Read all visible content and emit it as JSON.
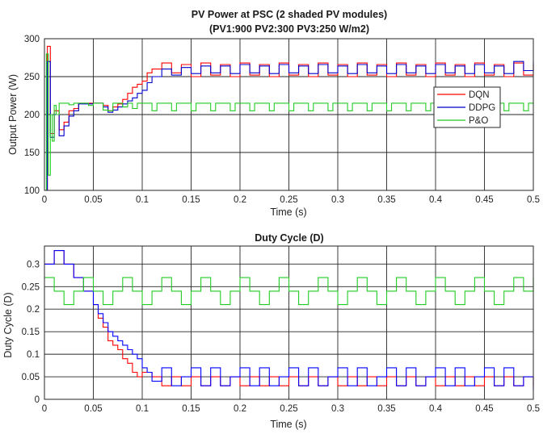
{
  "chart_data": [
    {
      "type": "line",
      "title": "PV Power at PSC (2 shaded PV modules)",
      "subtitle": "(PV1:900 PV2:300 PV3:250 W/m2)",
      "xlabel": "Time (s)",
      "ylabel": "Output Power (W)",
      "xlim": [
        0,
        0.5
      ],
      "ylim": [
        100,
        300
      ],
      "xticks": [
        "0",
        "0.05",
        "0.1",
        "0.15",
        "0.2",
        "0.25",
        "0.3",
        "0.35",
        "0.4",
        "0.45",
        "0.5"
      ],
      "yticks": [
        "100",
        "150",
        "200",
        "250",
        "300"
      ],
      "grid": true,
      "legend_position": "right-middle",
      "series": [
        {
          "name": "DQN",
          "color": "#ff0000",
          "x": [
            0,
            0.003,
            0.006,
            0.01,
            0.015,
            0.02,
            0.025,
            0.03,
            0.035,
            0.05,
            0.06,
            0.065,
            0.07,
            0.075,
            0.08,
            0.085,
            0.09,
            0.095,
            0.1,
            0.105,
            0.11,
            0.12,
            0.13,
            0.14,
            0.15,
            0.16,
            0.17,
            0.18,
            0.19,
            0.2,
            0.21,
            0.22,
            0.23,
            0.24,
            0.25,
            0.26,
            0.27,
            0.28,
            0.29,
            0.3,
            0.31,
            0.32,
            0.33,
            0.34,
            0.35,
            0.36,
            0.37,
            0.38,
            0.39,
            0.4,
            0.41,
            0.42,
            0.43,
            0.44,
            0.45,
            0.46,
            0.47,
            0.48,
            0.49,
            0.5
          ],
          "y": [
            100,
            290,
            175,
            205,
            180,
            190,
            205,
            208,
            215,
            215,
            212,
            205,
            210,
            214,
            220,
            228,
            236,
            240,
            244,
            255,
            260,
            268,
            255,
            266,
            250,
            268,
            252,
            266,
            250,
            268,
            252,
            266,
            250,
            268,
            252,
            266,
            250,
            268,
            252,
            266,
            250,
            268,
            252,
            266,
            250,
            268,
            252,
            266,
            250,
            268,
            252,
            266,
            250,
            268,
            252,
            266,
            250,
            268,
            252,
            266
          ]
        },
        {
          "name": "DDPG",
          "color": "#0000cc",
          "x": [
            0,
            0.003,
            0.006,
            0.01,
            0.015,
            0.02,
            0.025,
            0.03,
            0.035,
            0.05,
            0.06,
            0.065,
            0.07,
            0.075,
            0.08,
            0.085,
            0.09,
            0.095,
            0.1,
            0.105,
            0.11,
            0.12,
            0.13,
            0.14,
            0.15,
            0.16,
            0.17,
            0.18,
            0.19,
            0.2,
            0.21,
            0.22,
            0.23,
            0.24,
            0.25,
            0.26,
            0.27,
            0.28,
            0.29,
            0.3,
            0.31,
            0.32,
            0.33,
            0.34,
            0.35,
            0.36,
            0.37,
            0.38,
            0.39,
            0.4,
            0.41,
            0.42,
            0.43,
            0.44,
            0.45,
            0.46,
            0.47,
            0.48,
            0.49,
            0.5
          ],
          "y": [
            100,
            270,
            170,
            200,
            172,
            185,
            198,
            205,
            214,
            215,
            210,
            203,
            206,
            210,
            214,
            218,
            222,
            228,
            232,
            242,
            250,
            260,
            252,
            262,
            254,
            264,
            255,
            264,
            254,
            266,
            255,
            264,
            254,
            266,
            255,
            264,
            254,
            266,
            255,
            264,
            254,
            266,
            255,
            264,
            254,
            266,
            255,
            264,
            254,
            266,
            255,
            264,
            254,
            266,
            255,
            264,
            254,
            270,
            258,
            270
          ]
        },
        {
          "name": "P&O",
          "color": "#22cc22",
          "x": [
            0,
            0.002,
            0.004,
            0.006,
            0.008,
            0.01,
            0.012,
            0.015,
            0.02,
            0.025,
            0.03,
            0.035,
            0.04,
            0.045,
            0.05,
            0.055,
            0.06,
            0.065,
            0.07,
            0.075,
            0.08,
            0.085,
            0.09,
            0.095,
            0.1,
            0.105,
            0.11,
            0.115,
            0.12,
            0.125,
            0.13,
            0.135,
            0.14,
            0.145,
            0.15,
            0.155,
            0.16,
            0.165,
            0.17,
            0.175,
            0.18,
            0.185,
            0.19,
            0.195,
            0.2,
            0.205,
            0.21,
            0.215,
            0.22,
            0.225,
            0.23,
            0.235,
            0.24,
            0.245,
            0.25,
            0.255,
            0.26,
            0.265,
            0.27,
            0.275,
            0.28,
            0.285,
            0.29,
            0.295,
            0.3,
            0.305,
            0.31,
            0.315,
            0.32,
            0.325,
            0.33,
            0.335,
            0.34,
            0.345,
            0.35,
            0.355,
            0.36,
            0.365,
            0.37,
            0.375,
            0.38,
            0.385,
            0.39,
            0.395,
            0.4,
            0.405,
            0.41,
            0.415,
            0.42,
            0.425,
            0.43,
            0.435,
            0.44,
            0.445,
            0.45,
            0.455,
            0.46,
            0.465,
            0.47,
            0.475,
            0.48,
            0.485,
            0.49,
            0.495,
            0.5
          ],
          "y": [
            100,
            280,
            120,
            200,
            165,
            212,
            200,
            215,
            215,
            213,
            215,
            215,
            215,
            212,
            215,
            215,
            206,
            205,
            215,
            215,
            210,
            215,
            208,
            215,
            215,
            215,
            205,
            215,
            215,
            215,
            205,
            215,
            215,
            215,
            205,
            215,
            215,
            215,
            205,
            215,
            215,
            215,
            205,
            215,
            215,
            215,
            205,
            215,
            215,
            215,
            205,
            215,
            215,
            215,
            205,
            215,
            215,
            215,
            205,
            215,
            215,
            215,
            205,
            215,
            215,
            215,
            205,
            215,
            215,
            215,
            205,
            215,
            215,
            215,
            205,
            215,
            215,
            215,
            205,
            215,
            215,
            215,
            205,
            215,
            215,
            215,
            205,
            215,
            215,
            215,
            205,
            215,
            215,
            215,
            205,
            215,
            215,
            215,
            205,
            215,
            215,
            215,
            205,
            215,
            215
          ]
        }
      ]
    },
    {
      "type": "line",
      "title": "Duty Cycle (D)",
      "xlabel": "Time (s)",
      "ylabel": "Duty Cycle (D)",
      "xlim": [
        0,
        0.5
      ],
      "ylim": [
        0,
        0.34
      ],
      "xticks": [
        "0",
        "0.05",
        "0.1",
        "0.15",
        "0.2",
        "0.25",
        "0.3",
        "0.35",
        "0.4",
        "0.45",
        "0.5"
      ],
      "yticks": [
        "0",
        "0.05",
        "0.1",
        "0.15",
        "0.2",
        "0.25",
        "0.3"
      ],
      "grid": true,
      "series": [
        {
          "name": "DQN",
          "color": "#ff0000",
          "x": [
            0,
            0.01,
            0.02,
            0.03,
            0.04,
            0.05,
            0.055,
            0.06,
            0.065,
            0.07,
            0.075,
            0.08,
            0.085,
            0.09,
            0.095,
            0.1,
            0.11,
            0.12,
            0.13,
            0.14,
            0.15,
            0.16,
            0.17,
            0.18,
            0.19,
            0.2,
            0.21,
            0.22,
            0.23,
            0.24,
            0.25,
            0.26,
            0.27,
            0.28,
            0.29,
            0.3,
            0.31,
            0.32,
            0.33,
            0.34,
            0.35,
            0.36,
            0.37,
            0.38,
            0.39,
            0.4,
            0.41,
            0.42,
            0.43,
            0.44,
            0.45,
            0.46,
            0.47,
            0.48,
            0.49,
            0.5
          ],
          "y": [
            0.3,
            0.33,
            0.3,
            0.27,
            0.24,
            0.21,
            0.18,
            0.16,
            0.13,
            0.12,
            0.11,
            0.09,
            0.08,
            0.06,
            0.05,
            0.06,
            0.05,
            0.03,
            0.05,
            0.03,
            0.05,
            0.03,
            0.05,
            0.03,
            0.05,
            0.03,
            0.05,
            0.03,
            0.05,
            0.03,
            0.05,
            0.03,
            0.05,
            0.03,
            0.05,
            0.03,
            0.05,
            0.03,
            0.05,
            0.03,
            0.05,
            0.03,
            0.05,
            0.03,
            0.05,
            0.03,
            0.05,
            0.03,
            0.05,
            0.03,
            0.05,
            0.03,
            0.05,
            0.03,
            0.05,
            0.03
          ]
        },
        {
          "name": "DDPG",
          "color": "#0000ff",
          "x": [
            0,
            0.01,
            0.02,
            0.03,
            0.04,
            0.05,
            0.055,
            0.06,
            0.065,
            0.07,
            0.075,
            0.08,
            0.085,
            0.09,
            0.095,
            0.1,
            0.105,
            0.11,
            0.12,
            0.13,
            0.14,
            0.15,
            0.16,
            0.17,
            0.18,
            0.19,
            0.2,
            0.21,
            0.22,
            0.23,
            0.24,
            0.25,
            0.26,
            0.27,
            0.28,
            0.29,
            0.3,
            0.31,
            0.32,
            0.33,
            0.34,
            0.35,
            0.36,
            0.37,
            0.38,
            0.39,
            0.4,
            0.41,
            0.42,
            0.43,
            0.44,
            0.45,
            0.46,
            0.47,
            0.48,
            0.49,
            0.5
          ],
          "y": [
            0.3,
            0.33,
            0.3,
            0.27,
            0.24,
            0.21,
            0.19,
            0.17,
            0.15,
            0.14,
            0.13,
            0.12,
            0.11,
            0.1,
            0.09,
            0.07,
            0.06,
            0.04,
            0.07,
            0.03,
            0.05,
            0.07,
            0.03,
            0.07,
            0.03,
            0.05,
            0.07,
            0.03,
            0.07,
            0.03,
            0.05,
            0.07,
            0.03,
            0.07,
            0.03,
            0.05,
            0.07,
            0.03,
            0.07,
            0.03,
            0.05,
            0.07,
            0.03,
            0.07,
            0.03,
            0.05,
            0.07,
            0.03,
            0.07,
            0.03,
            0.05,
            0.07,
            0.03,
            0.07,
            0.03,
            0.05,
            0.02
          ]
        },
        {
          "name": "P&O",
          "color": "#22cc22",
          "x": [
            0,
            0.01,
            0.02,
            0.03,
            0.04,
            0.05,
            0.06,
            0.07,
            0.08,
            0.09,
            0.1,
            0.11,
            0.12,
            0.13,
            0.14,
            0.15,
            0.16,
            0.17,
            0.18,
            0.19,
            0.2,
            0.21,
            0.22,
            0.23,
            0.24,
            0.25,
            0.26,
            0.27,
            0.28,
            0.29,
            0.3,
            0.31,
            0.32,
            0.33,
            0.34,
            0.35,
            0.36,
            0.37,
            0.38,
            0.39,
            0.4,
            0.41,
            0.42,
            0.43,
            0.44,
            0.45,
            0.46,
            0.47,
            0.48,
            0.49,
            0.5
          ],
          "y": [
            0.27,
            0.24,
            0.21,
            0.24,
            0.27,
            0.24,
            0.21,
            0.24,
            0.27,
            0.24,
            0.21,
            0.24,
            0.27,
            0.24,
            0.21,
            0.24,
            0.27,
            0.24,
            0.21,
            0.24,
            0.27,
            0.24,
            0.21,
            0.24,
            0.27,
            0.24,
            0.21,
            0.24,
            0.27,
            0.24,
            0.21,
            0.24,
            0.27,
            0.24,
            0.21,
            0.24,
            0.27,
            0.24,
            0.21,
            0.24,
            0.27,
            0.24,
            0.21,
            0.24,
            0.27,
            0.24,
            0.21,
            0.24,
            0.27,
            0.24,
            0.27
          ]
        }
      ]
    }
  ]
}
